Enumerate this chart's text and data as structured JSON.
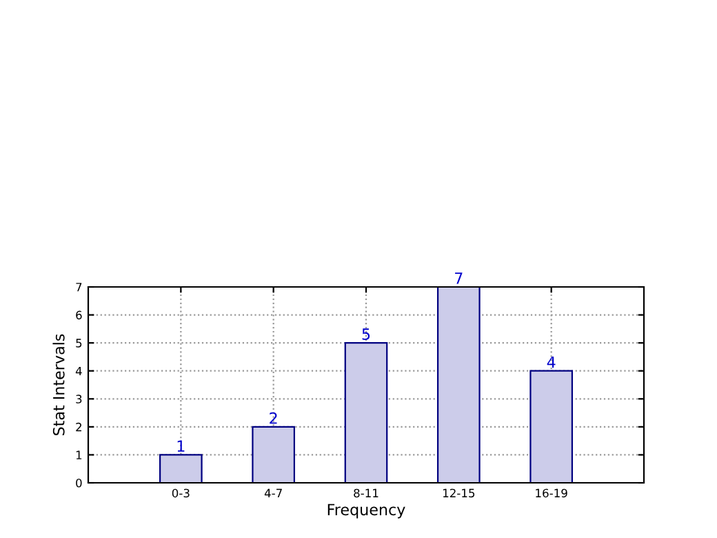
{
  "chart_data": {
    "type": "bar",
    "xlabel": "Frequency",
    "ylabel": "Stat Intervals",
    "categories": [
      "0-3",
      "4-7",
      "8-11",
      "12-15",
      "16-19"
    ],
    "series": [
      {
        "color": "#ccccea",
        "values": [
          1,
          2,
          5,
          7,
          4
        ]
      }
    ],
    "ylim": [
      0,
      7
    ],
    "yticks": [
      0,
      1,
      2,
      3,
      4,
      5,
      6,
      7
    ],
    "grid": true,
    "data_labels": true,
    "legend": false
  }
}
